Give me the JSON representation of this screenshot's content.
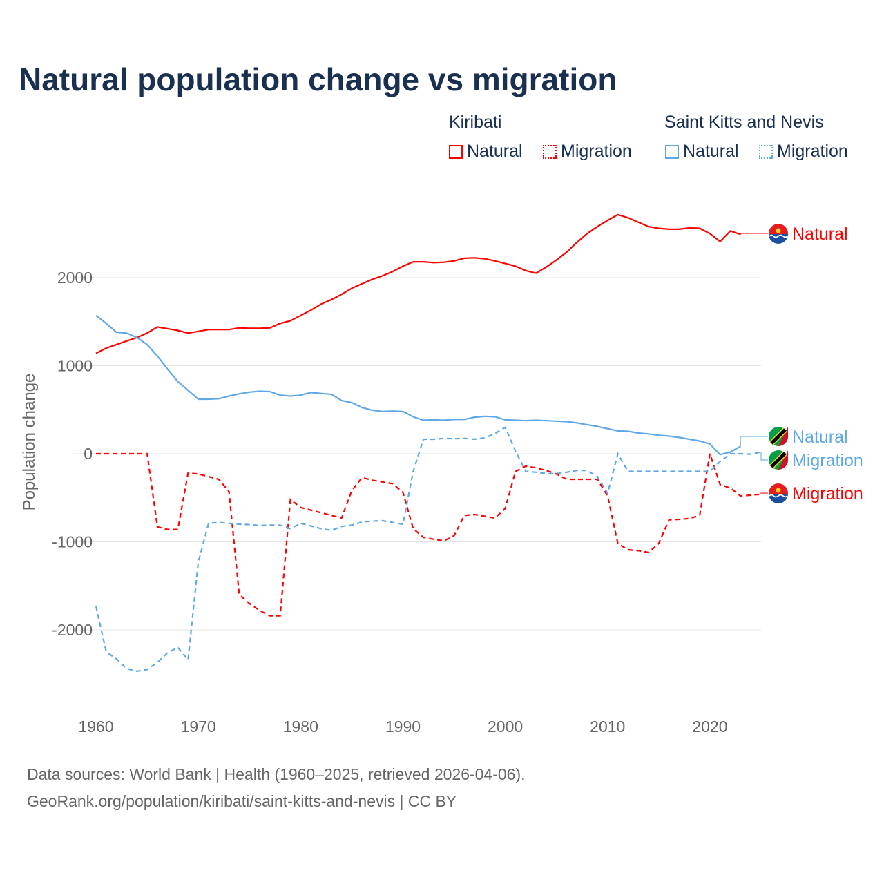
{
  "chart_data": {
    "type": "line",
    "title": "Natural population change vs migration",
    "xlabel": "",
    "ylabel": "Population change",
    "xlim": [
      1960,
      2025
    ],
    "ylim": [
      -2600,
      2800
    ],
    "x_ticks": [
      "1960",
      "1970",
      "1980",
      "1990",
      "2000",
      "2010",
      "2020"
    ],
    "y_ticks": [
      {
        "v": 2000,
        "label": "2000"
      },
      {
        "v": 1000,
        "label": "1000"
      },
      {
        "v": 0,
        "label": "0"
      },
      {
        "v": -1000,
        "label": "-1000"
      },
      {
        "v": -2000,
        "label": "-2000"
      }
    ],
    "grid": true,
    "legend": {
      "placement": "top-right",
      "groups": [
        {
          "country": "Kiribati",
          "items": [
            "Natural",
            "Migration"
          ]
        },
        {
          "country": "Saint Kitts and Nevis",
          "items": [
            "Natural",
            "Migration"
          ]
        }
      ]
    },
    "series": [
      {
        "country": "Kiribati",
        "name": "Natural",
        "color": "#ff0000",
        "dash": false,
        "end_label": "Natural",
        "start_year": 1960,
        "values": [
          1140,
          1200,
          1240,
          1280,
          1320,
          1370,
          1440,
          1420,
          1400,
          1370,
          1390,
          1410,
          1410,
          1410,
          1430,
          1425,
          1425,
          1430,
          1480,
          1510,
          1570,
          1630,
          1700,
          1750,
          1810,
          1880,
          1930,
          1980,
          2020,
          2070,
          2130,
          2180,
          2180,
          2170,
          2175,
          2190,
          2220,
          2225,
          2215,
          2190,
          2160,
          2130,
          2080,
          2050,
          2120,
          2200,
          2290,
          2400,
          2500,
          2580,
          2650,
          2715,
          2680,
          2630,
          2580,
          2560,
          2550,
          2550,
          2565,
          2560,
          2500,
          2410,
          2530,
          2490
        ]
      },
      {
        "country": "Kiribati",
        "name": "Migration",
        "color": "#ff0000",
        "dash": true,
        "end_label": "Migration",
        "start_year": 1960,
        "values": [
          0,
          0,
          0,
          0,
          0,
          0,
          -830,
          -860,
          -860,
          -220,
          -230,
          -260,
          -290,
          -430,
          -1600,
          -1700,
          -1780,
          -1840,
          -1840,
          -520,
          -610,
          -640,
          -670,
          -700,
          -730,
          -420,
          -270,
          -300,
          -320,
          -340,
          -440,
          -850,
          -950,
          -970,
          -990,
          -930,
          -700,
          -690,
          -710,
          -730,
          -620,
          -200,
          -140,
          -160,
          -190,
          -230,
          -290,
          -290,
          -290,
          -290,
          -480,
          -1020,
          -1090,
          -1100,
          -1120,
          -1020,
          -750,
          -745,
          -735,
          -700,
          0,
          -350,
          -390,
          -480,
          -470,
          -460
        ]
      },
      {
        "country": "Saint Kitts and Nevis",
        "name": "Natural",
        "color": "#5ea8e8",
        "dash": false,
        "end_label": "Natural",
        "start_year": 1960,
        "values": [
          1570,
          1480,
          1380,
          1370,
          1320,
          1240,
          1110,
          960,
          820,
          720,
          620,
          620,
          625,
          655,
          680,
          700,
          710,
          705,
          665,
          655,
          665,
          695,
          685,
          675,
          605,
          580,
          525,
          495,
          480,
          485,
          480,
          420,
          380,
          385,
          380,
          390,
          390,
          415,
          425,
          420,
          385,
          380,
          375,
          380,
          375,
          370,
          365,
          350,
          330,
          310,
          285,
          260,
          255,
          235,
          225,
          210,
          200,
          185,
          165,
          145,
          110,
          -10,
          20,
          85
        ]
      },
      {
        "country": "Saint Kitts and Nevis",
        "name": "Migration",
        "color": "#5ea8e8",
        "dash": true,
        "end_label": "Migration",
        "start_year": 1960,
        "values": [
          -1730,
          -2250,
          -2330,
          -2440,
          -2470,
          -2450,
          -2370,
          -2260,
          -2200,
          -2340,
          -1230,
          -790,
          -780,
          -790,
          -800,
          -805,
          -815,
          -810,
          -810,
          -850,
          -790,
          -820,
          -850,
          -870,
          -825,
          -810,
          -775,
          -765,
          -760,
          -780,
          -800,
          -200,
          165,
          165,
          175,
          170,
          175,
          165,
          180,
          230,
          300,
          30,
          -200,
          -210,
          -225,
          -225,
          -210,
          -190,
          -190,
          -260,
          -450,
          0,
          -200,
          -200,
          -200,
          -200,
          -200,
          -200,
          -200,
          -200,
          -200,
          -90,
          0,
          0,
          -5,
          20
        ]
      }
    ]
  },
  "legend": {
    "kiribati": "Kiribati",
    "skn": "Saint Kitts and Nevis",
    "natural": "Natural",
    "migration": "Migration"
  },
  "footer": {
    "line1": "Data sources: World Bank | Health (1960–2025, retrieved 2026-04-06).",
    "line2": "GeoRank.org/population/kiribati/saint-kitts-and-nevis | CC BY"
  }
}
